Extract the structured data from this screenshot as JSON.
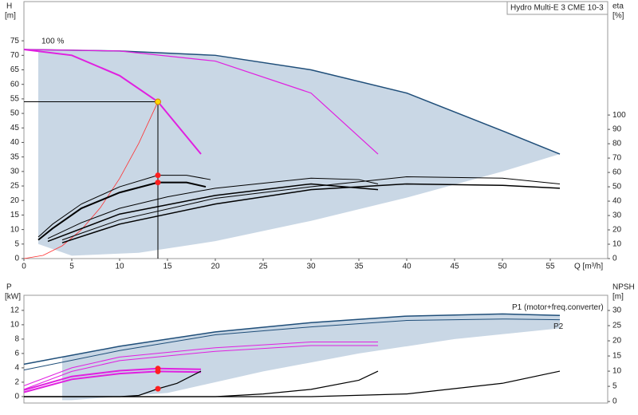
{
  "chart_data": [
    {
      "type": "line",
      "title": "Hydro Multi-E 3 CME 10-3",
      "ylabel": "H",
      "yunit": "[m]",
      "y2label": "eta",
      "y2unit": "[%]",
      "xlabel": "Q [m³/h]",
      "xlim": [
        0,
        61
      ],
      "ylim": [
        0,
        88.5
      ],
      "y2lim": [
        0,
        179
      ],
      "xticks": [
        0,
        5,
        10,
        15,
        20,
        25,
        30,
        35,
        40,
        45,
        50,
        55
      ],
      "yticks": [
        0,
        5,
        10,
        15,
        20,
        25,
        30,
        35,
        40,
        45,
        50,
        55,
        60,
        65,
        70,
        75
      ],
      "y2ticks": [
        0,
        10,
        20,
        30,
        40,
        50,
        60,
        70,
        80,
        90,
        100
      ],
      "series": [
        {
          "type": "area",
          "color": "#c9d7e5",
          "x": [
            1.5,
            10,
            20,
            30,
            40,
            50,
            56,
            50,
            40,
            30,
            20,
            12,
            5,
            1.5
          ],
          "values": [
            72,
            71.5,
            70,
            65,
            57,
            44,
            36,
            30,
            21,
            13,
            6,
            2,
            1,
            5
          ]
        },
        {
          "type": "line",
          "color": "#1f4e79",
          "width": 1.5,
          "x": [
            0,
            10,
            20,
            30,
            40,
            50,
            56
          ],
          "values": [
            72,
            71.5,
            70,
            65,
            57,
            44,
            36
          ]
        },
        {
          "type": "line",
          "name": "100 %",
          "label_pos": "start",
          "color": "#e020e0",
          "width": 2,
          "x": [
            0,
            5,
            10,
            14,
            18.5
          ],
          "values": [
            72,
            70,
            63,
            54,
            36
          ]
        },
        {
          "type": "line",
          "color": "#e020e0",
          "width": 1.2,
          "x": [
            0,
            10,
            20,
            30,
            37
          ],
          "values": [
            72,
            71.5,
            68,
            57,
            36
          ]
        },
        {
          "type": "line",
          "color": "#ff3030",
          "width": 0.8,
          "x": [
            0,
            2,
            4,
            6,
            8,
            10,
            12,
            14
          ],
          "values": [
            0,
            1.1,
            4.4,
            9.9,
            17.6,
            27.6,
            39.7,
            54
          ]
        },
        {
          "type": "line",
          "color": "#000000",
          "width": 1,
          "x": [
            0,
            14
          ],
          "values": [
            54,
            54
          ]
        },
        {
          "type": "line",
          "color": "#000000",
          "width": 1,
          "x": [
            14,
            14
          ],
          "values": [
            54,
            0
          ]
        },
        {
          "type": "line",
          "axis": "y2",
          "color": "#000000",
          "width": 1,
          "x": [
            1.5,
            3,
            6,
            10,
            14,
            17,
            19.5
          ],
          "values": [
            15,
            24,
            38,
            50,
            58,
            58,
            55
          ]
        },
        {
          "type": "line",
          "axis": "y2",
          "color": "#000000",
          "width": 2,
          "x": [
            1.5,
            3,
            6,
            10,
            14,
            17,
            19
          ],
          "values": [
            13,
            21,
            35,
            46,
            53,
            53,
            50
          ]
        },
        {
          "type": "line",
          "axis": "y2",
          "color": "#000000",
          "width": 1,
          "x": [
            2.5,
            6,
            10,
            15,
            20,
            30,
            35,
            37
          ],
          "values": [
            14,
            25,
            35,
            43,
            49,
            56,
            55,
            52
          ]
        },
        {
          "type": "line",
          "axis": "y2",
          "color": "#000000",
          "width": 1.5,
          "x": [
            2.5,
            10,
            20,
            30,
            37
          ],
          "values": [
            12,
            31,
            44,
            52,
            48
          ]
        },
        {
          "type": "line",
          "axis": "y2",
          "color": "#000000",
          "width": 1,
          "x": [
            4,
            10,
            20,
            30,
            40,
            50,
            56
          ],
          "values": [
            13,
            27,
            42,
            50,
            57,
            56,
            52
          ]
        },
        {
          "type": "line",
          "axis": "y2",
          "color": "#000000",
          "width": 1.5,
          "x": [
            4,
            10,
            20,
            30,
            40,
            50,
            56
          ],
          "values": [
            11,
            24,
            38,
            48,
            52,
            51,
            49
          ]
        },
        {
          "type": "marker",
          "axis": "y2",
          "color": "#ff2020",
          "x": [
            14,
            14
          ],
          "values": [
            58,
            53
          ]
        },
        {
          "type": "marker",
          "color": "#ffd700",
          "x": [
            14
          ],
          "values": [
            54
          ]
        }
      ]
    },
    {
      "type": "line",
      "ylabel": "P",
      "yunit": "[kW]",
      "y2label": "NPSH",
      "y2unit": "[m]",
      "xlim": [
        0,
        61
      ],
      "ylim": [
        -0.9,
        14.1
      ],
      "y2lim": [
        -0.5,
        35
      ],
      "yticks": [
        0,
        2,
        4,
        6,
        8,
        10,
        12
      ],
      "y2ticks": [
        0,
        5,
        10,
        15,
        20,
        25,
        30
      ],
      "series": [
        {
          "type": "area",
          "color": "#c9d7e5",
          "x": [
            4,
            10,
            20,
            30,
            40,
            50,
            56,
            56,
            45,
            35,
            25,
            15,
            5,
            4
          ],
          "values": [
            5.5,
            7,
            9,
            10.3,
            11.2,
            11.5,
            11.3,
            9.5,
            8,
            6,
            3.5,
            0.5,
            -0.5,
            -0.5
          ]
        },
        {
          "type": "line",
          "name": "P1 (motor+freq.converter)",
          "label_pos": "above",
          "color": "#1f4e79",
          "width": 1.5,
          "x": [
            0,
            10,
            20,
            30,
            40,
            50,
            56
          ],
          "values": [
            4.5,
            7,
            9,
            10.3,
            11.2,
            11.5,
            11.3
          ]
        },
        {
          "type": "line",
          "name": "P2",
          "label_pos": "below",
          "color": "#1f4e79",
          "width": 1,
          "x": [
            0,
            10,
            20,
            30,
            40,
            50,
            56
          ],
          "values": [
            3.7,
            6.4,
            8.6,
            9.7,
            10.6,
            10.8,
            10.7
          ]
        },
        {
          "type": "line",
          "color": "#e020e0",
          "width": 1,
          "x": [
            0,
            5,
            10,
            20,
            30,
            37
          ],
          "values": [
            1.5,
            4,
            5.5,
            6.8,
            7.6,
            7.6
          ]
        },
        {
          "type": "line",
          "color": "#e020e0",
          "width": 1,
          "x": [
            0,
            5,
            10,
            20,
            30,
            37
          ],
          "values": [
            1,
            3.5,
            5,
            6.3,
            7.1,
            7.1
          ]
        },
        {
          "type": "line",
          "color": "#e020e0",
          "width": 2,
          "x": [
            0,
            5,
            10,
            14,
            18.5
          ],
          "values": [
            0.9,
            2.8,
            3.6,
            3.9,
            3.8
          ]
        },
        {
          "type": "line",
          "color": "#e020e0",
          "width": 2,
          "x": [
            0,
            5,
            10,
            14,
            18.5
          ],
          "values": [
            0.6,
            2.4,
            3.2,
            3.5,
            3.4
          ]
        },
        {
          "type": "line",
          "axis": "y2",
          "color": "#000000",
          "width": 1.2,
          "x": [
            0,
            10,
            12,
            14,
            16,
            18.5
          ],
          "values": [
            1.6,
            1.6,
            2,
            4.2,
            6,
            10
          ]
        },
        {
          "type": "line",
          "axis": "y2",
          "color": "#000000",
          "width": 1.2,
          "x": [
            0,
            20,
            25,
            30,
            35,
            37
          ],
          "values": [
            1.6,
            1.6,
            2.5,
            4,
            7,
            10
          ]
        },
        {
          "type": "line",
          "axis": "y2",
          "color": "#000000",
          "width": 1.2,
          "x": [
            0,
            30,
            40,
            50,
            56
          ],
          "values": [
            1.6,
            1.6,
            2.5,
            6,
            10
          ]
        },
        {
          "type": "marker",
          "color": "#ff2020",
          "x": [
            14,
            14
          ],
          "values": [
            3.9,
            3.5
          ]
        },
        {
          "type": "marker",
          "axis": "y2",
          "color": "#ff2020",
          "x": [
            14
          ],
          "values": [
            4.2
          ]
        }
      ]
    }
  ]
}
